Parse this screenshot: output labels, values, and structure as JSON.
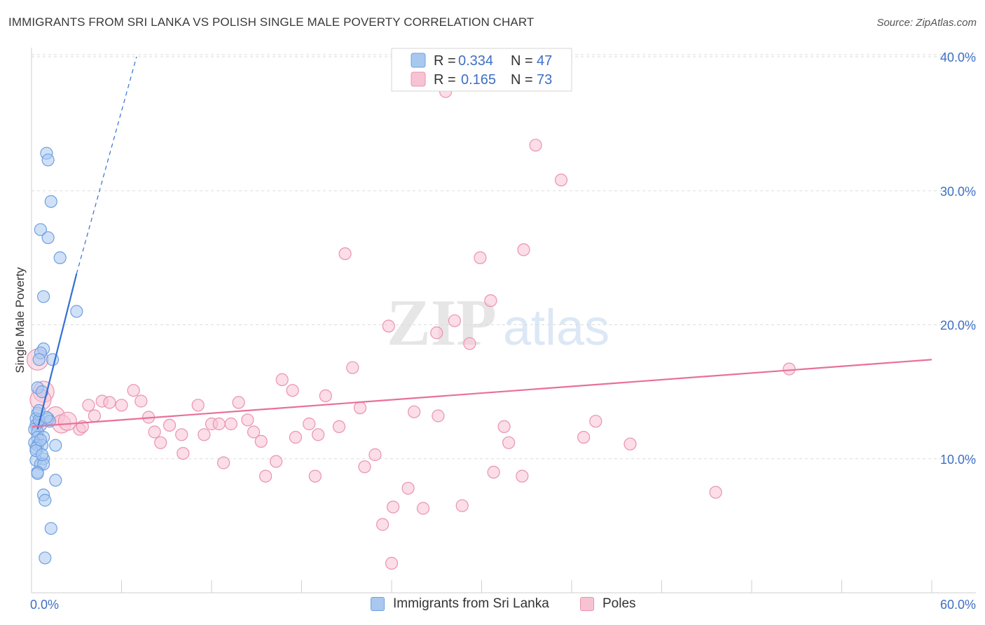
{
  "header": {
    "title": "IMMIGRANTS FROM SRI LANKA VS POLISH SINGLE MALE POVERTY CORRELATION CHART",
    "source": "Source: ZipAtlas.com"
  },
  "watermark": {
    "zip": "ZIP",
    "atlas": "atlas"
  },
  "colors": {
    "blue_fill": "#a9c8f0",
    "blue_stroke": "#6f9fe0",
    "blue_line": "#3370d6",
    "pink_fill": "#f7c3d3",
    "pink_stroke": "#ea92b0",
    "pink_line": "#e8709a",
    "tick_text": "#3d6fc6",
    "grid": "#dcdcdc"
  },
  "legend": {
    "rows": [
      {
        "series": "blue",
        "r_label": "R =",
        "r_value": "0.334",
        "n_label": "N =",
        "n_value": "47"
      },
      {
        "series": "pink",
        "r_label": "R =",
        "r_value": "0.165",
        "n_label": "N =",
        "n_value": "73"
      }
    ]
  },
  "bottom_legend": {
    "items": [
      {
        "series": "blue",
        "label": "Immigrants from Sri Lanka"
      },
      {
        "series": "pink",
        "label": "Poles"
      }
    ]
  },
  "chart_data": {
    "type": "scatter",
    "title": "IMMIGRANTS FROM SRI LANKA VS POLISH SINGLE MALE POVERTY CORRELATION CHART",
    "xlabel": "",
    "ylabel": "Single Male Poverty",
    "xlim": [
      0,
      60
    ],
    "ylim": [
      0,
      42
    ],
    "x_tick_labels": [
      {
        "value": 0,
        "label": "0.0%"
      },
      {
        "value": 60,
        "label": "60.0%"
      }
    ],
    "x_minor_ticks": [
      6,
      12,
      18,
      24,
      30,
      36,
      42,
      48,
      54,
      60
    ],
    "y_ticks": [
      {
        "value": 10,
        "label": "10.0%"
      },
      {
        "value": 20,
        "label": "20.0%"
      },
      {
        "value": 30,
        "label": "30.0%"
      },
      {
        "value": 40,
        "label": "40.0%"
      }
    ],
    "grid": true,
    "legend_position": "top-center",
    "series": [
      {
        "name": "Immigrants from Sri Lanka",
        "color": "blue",
        "r": 0.334,
        "n": 47,
        "trend": {
          "x0": 0.4,
          "y0": 12.2,
          "x1": 3.0,
          "y1": 23.8,
          "dash_x1": 7.0,
          "dash_y1": 40.0
        },
        "points": [
          [
            1.0,
            32.8
          ],
          [
            1.1,
            32.3
          ],
          [
            1.3,
            29.2
          ],
          [
            0.6,
            27.1
          ],
          [
            1.1,
            26.5
          ],
          [
            1.9,
            25.0
          ],
          [
            0.8,
            22.1
          ],
          [
            3.0,
            21.0
          ],
          [
            0.8,
            18.2
          ],
          [
            0.6,
            17.9
          ],
          [
            1.4,
            17.4
          ],
          [
            0.5,
            17.4
          ],
          [
            0.4,
            15.3
          ],
          [
            0.7,
            15.0
          ],
          [
            0.4,
            13.4
          ],
          [
            0.3,
            13.0
          ],
          [
            1.1,
            13.0
          ],
          [
            0.5,
            12.7
          ],
          [
            1.2,
            12.8
          ],
          [
            0.3,
            12.5
          ],
          [
            0.6,
            12.5
          ],
          [
            0.2,
            12.2
          ],
          [
            0.4,
            12.0
          ],
          [
            0.4,
            11.6
          ],
          [
            0.8,
            11.6
          ],
          [
            0.2,
            11.2
          ],
          [
            0.4,
            11.0
          ],
          [
            0.7,
            11.0
          ],
          [
            1.6,
            11.0
          ],
          [
            0.3,
            10.8
          ],
          [
            0.8,
            10.0
          ],
          [
            0.3,
            9.9
          ],
          [
            0.6,
            9.6
          ],
          [
            0.8,
            9.6
          ],
          [
            0.4,
            9.0
          ],
          [
            0.4,
            8.9
          ],
          [
            1.6,
            8.4
          ],
          [
            0.8,
            7.3
          ],
          [
            0.9,
            6.9
          ],
          [
            1.3,
            4.8
          ],
          [
            0.9,
            2.6
          ],
          [
            0.5,
            12.9
          ],
          [
            0.6,
            11.4
          ],
          [
            0.3,
            10.6
          ],
          [
            0.7,
            10.3
          ],
          [
            1.0,
            13.1
          ],
          [
            0.5,
            13.6
          ]
        ]
      },
      {
        "name": "Poles",
        "color": "pink",
        "r": 0.165,
        "n": 73,
        "trend": {
          "x0": 0,
          "y0": 12.4,
          "x1": 60,
          "y1": 17.4
        },
        "points": [
          [
            27.6,
            37.4
          ],
          [
            33.6,
            33.4
          ],
          [
            35.3,
            30.8
          ],
          [
            20.9,
            25.3
          ],
          [
            29.9,
            25.0
          ],
          [
            32.8,
            25.6
          ],
          [
            30.6,
            21.8
          ],
          [
            23.8,
            19.9
          ],
          [
            27.0,
            19.4
          ],
          [
            28.2,
            20.3
          ],
          [
            29.2,
            18.6
          ],
          [
            0.4,
            17.4
          ],
          [
            21.4,
            16.8
          ],
          [
            16.7,
            15.9
          ],
          [
            0.8,
            15.0
          ],
          [
            17.4,
            15.1
          ],
          [
            19.6,
            14.7
          ],
          [
            6.8,
            15.1
          ],
          [
            4.7,
            14.3
          ],
          [
            5.2,
            14.2
          ],
          [
            7.3,
            14.3
          ],
          [
            3.8,
            14.0
          ],
          [
            6.0,
            14.0
          ],
          [
            11.1,
            14.0
          ],
          [
            13.8,
            14.2
          ],
          [
            21.9,
            13.8
          ],
          [
            25.5,
            13.5
          ],
          [
            27.1,
            13.2
          ],
          [
            4.2,
            13.2
          ],
          [
            0.6,
            14.4
          ],
          [
            1.6,
            13.2
          ],
          [
            7.8,
            13.1
          ],
          [
            14.4,
            12.9
          ],
          [
            18.5,
            12.6
          ],
          [
            12.0,
            12.6
          ],
          [
            12.5,
            12.6
          ],
          [
            13.3,
            12.6
          ],
          [
            9.2,
            12.5
          ],
          [
            20.5,
            12.4
          ],
          [
            31.5,
            12.4
          ],
          [
            37.6,
            12.8
          ],
          [
            8.2,
            12.0
          ],
          [
            3.2,
            12.2
          ],
          [
            2.0,
            12.6
          ],
          [
            3.4,
            12.4
          ],
          [
            10.0,
            11.8
          ],
          [
            11.5,
            11.8
          ],
          [
            14.8,
            12.0
          ],
          [
            17.6,
            11.6
          ],
          [
            19.1,
            11.8
          ],
          [
            36.8,
            11.6
          ],
          [
            39.9,
            11.1
          ],
          [
            8.6,
            11.2
          ],
          [
            15.3,
            11.3
          ],
          [
            31.8,
            11.2
          ],
          [
            10.1,
            10.4
          ],
          [
            22.9,
            10.3
          ],
          [
            12.8,
            9.7
          ],
          [
            16.3,
            9.8
          ],
          [
            22.2,
            9.4
          ],
          [
            30.8,
            9.0
          ],
          [
            15.6,
            8.7
          ],
          [
            18.9,
            8.7
          ],
          [
            32.7,
            8.7
          ],
          [
            45.6,
            7.5
          ],
          [
            25.1,
            7.8
          ],
          [
            24.1,
            6.4
          ],
          [
            26.1,
            6.3
          ],
          [
            28.7,
            6.5
          ],
          [
            23.4,
            5.1
          ],
          [
            24.0,
            2.2
          ],
          [
            50.5,
            16.7
          ],
          [
            2.4,
            12.8
          ]
        ]
      }
    ]
  }
}
